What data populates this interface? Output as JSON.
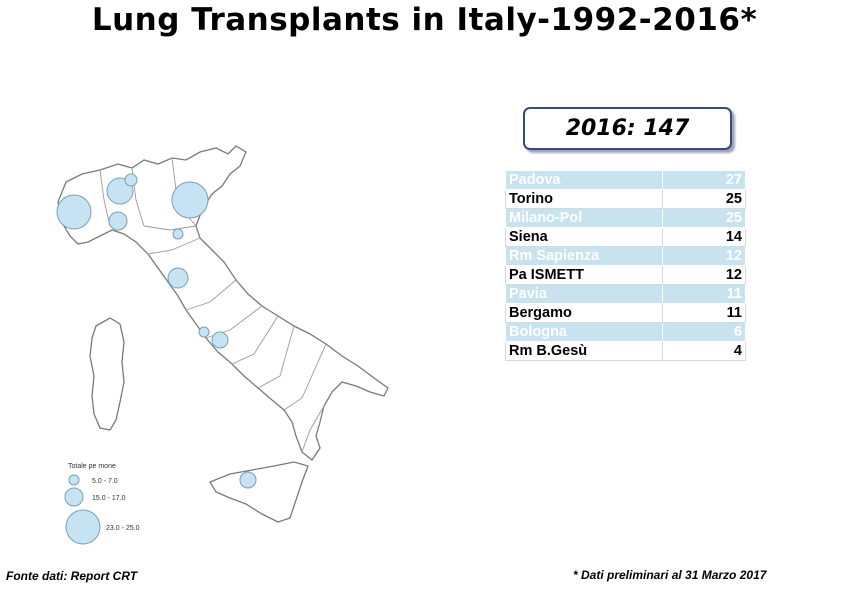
{
  "title": "Lung  Transplants in Italy-1992-2016*",
  "total": "2016: 147",
  "centers": [
    {
      "name": "Padova",
      "value": "27"
    },
    {
      "name": "Torino",
      "value": "25"
    },
    {
      "name": "Milano-Pol",
      "value": "25"
    },
    {
      "name": "Siena",
      "value": "14"
    },
    {
      "name": "Rm Sapienza",
      "value": "12"
    },
    {
      "name": "Pa ISMETT",
      "value": "12"
    },
    {
      "name": "Pavia",
      "value": "11"
    },
    {
      "name": "Bergamo",
      "value": "11"
    },
    {
      "name": "Bologna",
      "value": "6"
    },
    {
      "name": "Rm B.Gesù",
      "value": "4"
    }
  ],
  "map": {
    "legend_title": "Totale pe mone",
    "legend_items": [
      "5.0 - 7.0",
      "15.0 - 17.0",
      "23.0 - 25.0"
    ],
    "bubble_color": "#c5e3f3"
  },
  "footer": {
    "source": "Fonte dati: Report CRT",
    "note": "* Dati  preliminari al 31 Marzo 2017"
  }
}
